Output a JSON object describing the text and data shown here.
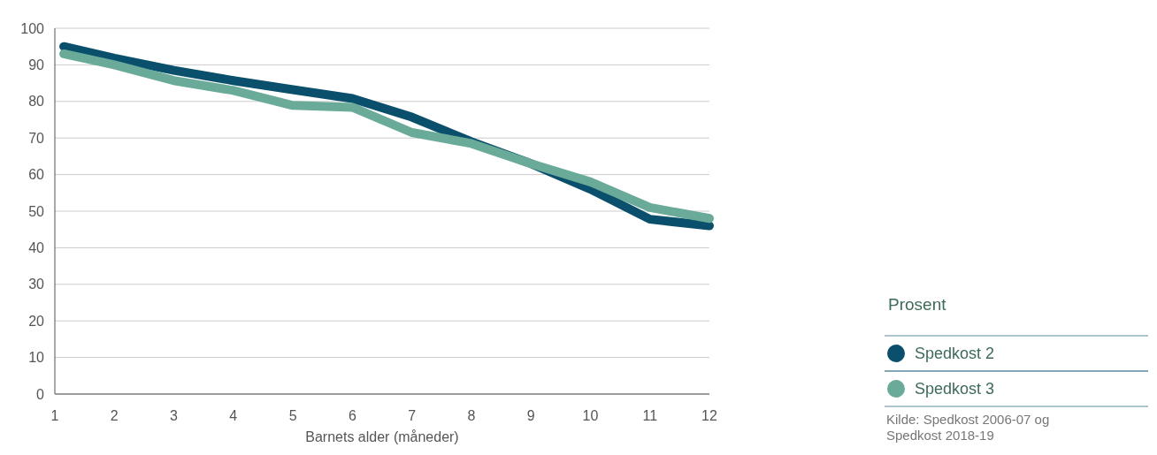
{
  "chart_data": {
    "type": "line",
    "xlabel": "Barnets alder (måneder)",
    "legend_title": "Prosent",
    "x": [
      1.15,
      2,
      3,
      4,
      5,
      6,
      7,
      8,
      9,
      10,
      11,
      12
    ],
    "series": [
      {
        "name": "Spedkost 2",
        "color": "#0a4f6b",
        "values": [
          95,
          91.8,
          88.5,
          85.7,
          83.2,
          80.8,
          75.7,
          69,
          63,
          56,
          47.8,
          46
        ]
      },
      {
        "name": "Spedkost 3",
        "color": "#6aaa98",
        "values": [
          93,
          90,
          85.7,
          83,
          78.9,
          78.4,
          71.5,
          68.5,
          63,
          58,
          51,
          48
        ]
      }
    ],
    "xlim": [
      1,
      12
    ],
    "xticks": [
      1,
      2,
      3,
      4,
      5,
      6,
      7,
      8,
      9,
      10,
      11,
      12
    ],
    "ylim": [
      0,
      100
    ],
    "yticks": [
      0,
      10,
      20,
      30,
      40,
      50,
      60,
      70,
      80,
      90,
      100
    ],
    "grid": "y",
    "legend": "right",
    "line_style": "solid",
    "annotations": [
      "Kilde: Spedkost 2006-07 og Spedkost 2018-19"
    ]
  }
}
